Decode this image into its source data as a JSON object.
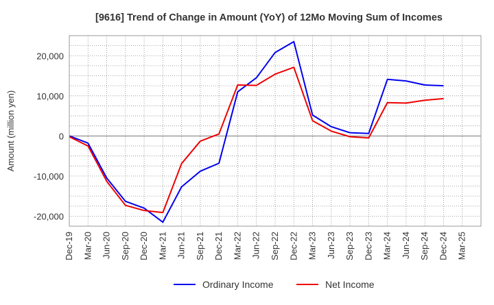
{
  "chart_data": {
    "type": "line",
    "title": "[9616]  Trend of Change in Amount (YoY) of 12Mo Moving Sum of Incomes",
    "xlabel": "",
    "ylabel": "Amount (million yen)",
    "categories": [
      "Dec-19",
      "Mar-20",
      "Jun-20",
      "Sep-20",
      "Dec-20",
      "Mar-21",
      "Jun-21",
      "Sep-21",
      "Dec-21",
      "Mar-22",
      "Jun-22",
      "Sep-22",
      "Dec-22",
      "Mar-23",
      "Jun-23",
      "Sep-23",
      "Dec-23",
      "Mar-24",
      "Jun-24",
      "Sep-24",
      "Dec-24",
      "Mar-25"
    ],
    "ylim": [
      -22500,
      25000
    ],
    "yticks": [
      -20000,
      -10000,
      0,
      10000,
      20000
    ],
    "ytick_labels": [
      "-20,000",
      "-10,000",
      "0",
      "10,000",
      "20,000"
    ],
    "grid": true,
    "legend_position": "bottom",
    "series": [
      {
        "name": "Ordinary Income",
        "color": "#0000ee",
        "values": [
          0,
          -1800,
          -10500,
          -16300,
          -18000,
          -21500,
          -12700,
          -8800,
          -6800,
          11000,
          14500,
          20800,
          23500,
          5200,
          2300,
          800,
          600,
          14100,
          13700,
          12700,
          12500,
          null
        ]
      },
      {
        "name": "Net Income",
        "color": "#ee0000",
        "values": [
          -200,
          -2500,
          -11300,
          -17300,
          -18600,
          -19100,
          -6900,
          -1300,
          500,
          12700,
          12600,
          15400,
          17100,
          3800,
          1200,
          -200,
          -500,
          8300,
          8200,
          8900,
          9300,
          null
        ]
      }
    ]
  }
}
